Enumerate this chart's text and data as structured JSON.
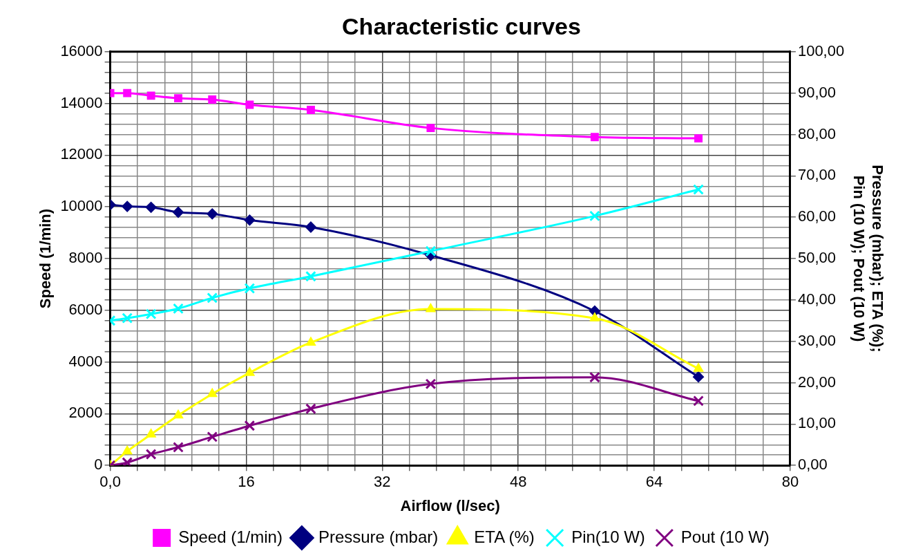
{
  "chart_data": {
    "type": "line",
    "title": "Characteristic curves",
    "xlabel": "Airflow (l/sec)",
    "ylabel": "Speed (1/min)",
    "y2label": "Pressure (mbar); ETA (%); Pin (10 W); Pout (10 W)",
    "x": [
      0,
      2,
      4.8,
      8,
      12,
      16.4,
      23.6,
      37.7,
      57,
      69.2
    ],
    "series": [
      {
        "name": "Speed (1/min)",
        "color": "#ff00ff",
        "marker": "square",
        "values": [
          14400,
          14400,
          14300,
          14200,
          14150,
          13950,
          13750,
          13050,
          12700,
          12650
        ]
      },
      {
        "name": "Pressure (mbar)",
        "color": "#000080",
        "marker": "diamond",
        "axis": "y2",
        "values": [
          63.0,
          62.6,
          62.4,
          61.2,
          60.8,
          59.3,
          57.6,
          50.8,
          37.3,
          21.4
        ]
      },
      {
        "name": "ETA (%)",
        "color": "#ffff00",
        "marker": "triangle",
        "axis": "y2",
        "values": [
          0,
          3.4,
          7.5,
          12.1,
          17.3,
          22.4,
          29.7,
          37.8,
          35.6,
          23.4
        ]
      },
      {
        "name": "Pin(10 W)",
        "color": "#00ffff",
        "marker": "cross",
        "axis": "y2",
        "values": [
          35.0,
          35.6,
          36.6,
          37.9,
          40.5,
          42.8,
          45.7,
          51.8,
          60.3,
          66.7
        ]
      },
      {
        "name": "Pout (10 W)",
        "color": "#800080",
        "marker": "cross",
        "axis": "y2",
        "values": [
          0,
          0.7,
          2.7,
          4.4,
          6.9,
          9.6,
          13.7,
          19.7,
          21.3,
          15.6
        ]
      }
    ],
    "xlim": [
      0,
      80
    ],
    "xticks": [
      {
        "value": 0,
        "label": "0,0"
      },
      {
        "value": 3.2,
        "label": null
      },
      {
        "value": 6.4,
        "label": null
      },
      {
        "value": 9.6,
        "label": null
      },
      {
        "value": 12.8,
        "label": null
      },
      16,
      {
        "value": 19.2,
        "label": null
      },
      {
        "value": 22.4,
        "label": null
      },
      {
        "value": 25.6,
        "label": null
      },
      {
        "value": 28.8,
        "label": null
      },
      32,
      {
        "value": 35.2,
        "label": null
      },
      {
        "value": 38.4,
        "label": null
      },
      {
        "value": 41.6,
        "label": null
      },
      {
        "value": 44.8,
        "label": null
      },
      48,
      {
        "value": 51.2,
        "label": null
      },
      {
        "value": 54.4,
        "label": null
      },
      {
        "value": 57.6,
        "label": null
      },
      {
        "value": 60.8,
        "label": null
      },
      64,
      {
        "value": 67.2,
        "label": null
      },
      {
        "value": 70.4,
        "label": null
      },
      {
        "value": 73.6,
        "label": null
      },
      {
        "value": 76.8,
        "label": null
      },
      80
    ],
    "ylim": [
      0,
      16000
    ],
    "yticks": [
      0,
      {
        "value": 400,
        "label": null
      },
      {
        "value": 800,
        "label": null
      },
      {
        "value": 1200,
        "label": null
      },
      {
        "value": 1600,
        "label": null
      },
      2000,
      {
        "value": 2400,
        "label": null
      },
      {
        "value": 2800,
        "label": null
      },
      {
        "value": 3200,
        "label": null
      },
      {
        "value": 3600,
        "label": null
      },
      4000,
      {
        "value": 4400,
        "label": null
      },
      {
        "value": 4800,
        "label": null
      },
      {
        "value": 5200,
        "label": null
      },
      {
        "value": 5600,
        "label": null
      },
      6000,
      {
        "value": 6400,
        "label": null
      },
      {
        "value": 6800,
        "label": null
      },
      {
        "value": 7200,
        "label": null
      },
      {
        "value": 7600,
        "label": null
      },
      8000,
      {
        "value": 8400,
        "label": null
      },
      {
        "value": 8800,
        "label": null
      },
      {
        "value": 9200,
        "label": null
      },
      {
        "value": 9600,
        "label": null
      },
      10000,
      {
        "value": 10400,
        "label": null
      },
      {
        "value": 10800,
        "label": null
      },
      {
        "value": 11200,
        "label": null
      },
      {
        "value": 11600,
        "label": null
      },
      12000,
      {
        "value": 12400,
        "label": null
      },
      {
        "value": 12800,
        "label": null
      },
      {
        "value": 13200,
        "label": null
      },
      {
        "value": 13600,
        "label": null
      },
      14000,
      {
        "value": 14400,
        "label": null
      },
      {
        "value": 14800,
        "label": null
      },
      {
        "value": 15200,
        "label": null
      },
      {
        "value": 15600,
        "label": null
      },
      16000
    ],
    "y2lim": [
      0,
      100
    ],
    "y2ticks": [
      {
        "value": 0,
        "label": "0,00"
      },
      {
        "value": 10,
        "label": "10,00"
      },
      {
        "value": 20,
        "label": "20,00"
      },
      {
        "value": 30,
        "label": "30,00"
      },
      {
        "value": 40,
        "label": "40,00"
      },
      {
        "value": 50,
        "label": "50,00"
      },
      {
        "value": 60,
        "label": "60,00"
      },
      {
        "value": 70,
        "label": "70,00"
      },
      {
        "value": 80,
        "label": "80,00"
      },
      {
        "value": 90,
        "label": "90,00"
      },
      {
        "value": 100,
        "label": "100,00"
      }
    ],
    "grid": true,
    "legend": "bottom"
  }
}
